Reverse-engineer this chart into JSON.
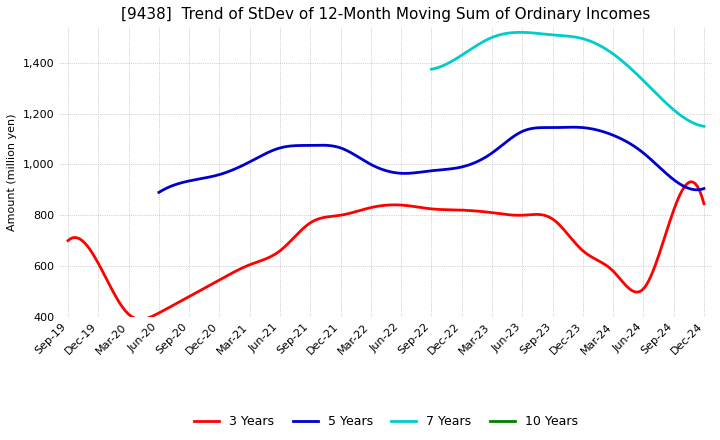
{
  "title": "[9438]  Trend of StDev of 12-Month Moving Sum of Ordinary Incomes",
  "ylabel": "Amount (million yen)",
  "ylim": [
    400,
    1540
  ],
  "yticks": [
    400,
    600,
    800,
    1000,
    1200,
    1400
  ],
  "x_labels": [
    "Sep-19",
    "Dec-19",
    "Mar-20",
    "Jun-20",
    "Sep-20",
    "Dec-20",
    "Mar-21",
    "Jun-21",
    "Sep-21",
    "Dec-21",
    "Mar-22",
    "Jun-22",
    "Sep-22",
    "Dec-22",
    "Mar-23",
    "Jun-23",
    "Sep-23",
    "Dec-23",
    "Mar-24",
    "Jun-24",
    "Sep-24",
    "Dec-24"
  ],
  "series": {
    "3 Years": {
      "color": "#ff0000",
      "data": [
        700,
        610,
        410,
        415,
        480,
        545,
        605,
        660,
        770,
        800,
        830,
        840,
        825,
        820,
        810,
        800,
        785,
        660,
        580,
        510,
        820,
        845
      ]
    },
    "5 Years": {
      "color": "#0000cc",
      "data": [
        null,
        null,
        null,
        890,
        935,
        960,
        1010,
        1065,
        1075,
        1065,
        1000,
        965,
        975,
        990,
        1045,
        1130,
        1145,
        1145,
        1115,
        1045,
        940,
        905
      ]
    },
    "7 Years": {
      "color": "#00cccc",
      "data": [
        null,
        null,
        null,
        null,
        null,
        null,
        null,
        null,
        null,
        null,
        null,
        null,
        1375,
        1430,
        1500,
        1520,
        1510,
        1495,
        1435,
        1330,
        1215,
        1150
      ]
    },
    "10 Years": {
      "color": "#008000",
      "data": [
        null,
        null,
        null,
        null,
        null,
        null,
        null,
        null,
        null,
        null,
        null,
        null,
        null,
        null,
        null,
        null,
        null,
        null,
        null,
        null,
        null,
        null
      ]
    }
  },
  "background_color": "#ffffff",
  "grid_color": "#aaaaaa",
  "title_fontsize": 11,
  "legend_fontsize": 9,
  "tick_fontsize": 8,
  "line_width": 2.0
}
